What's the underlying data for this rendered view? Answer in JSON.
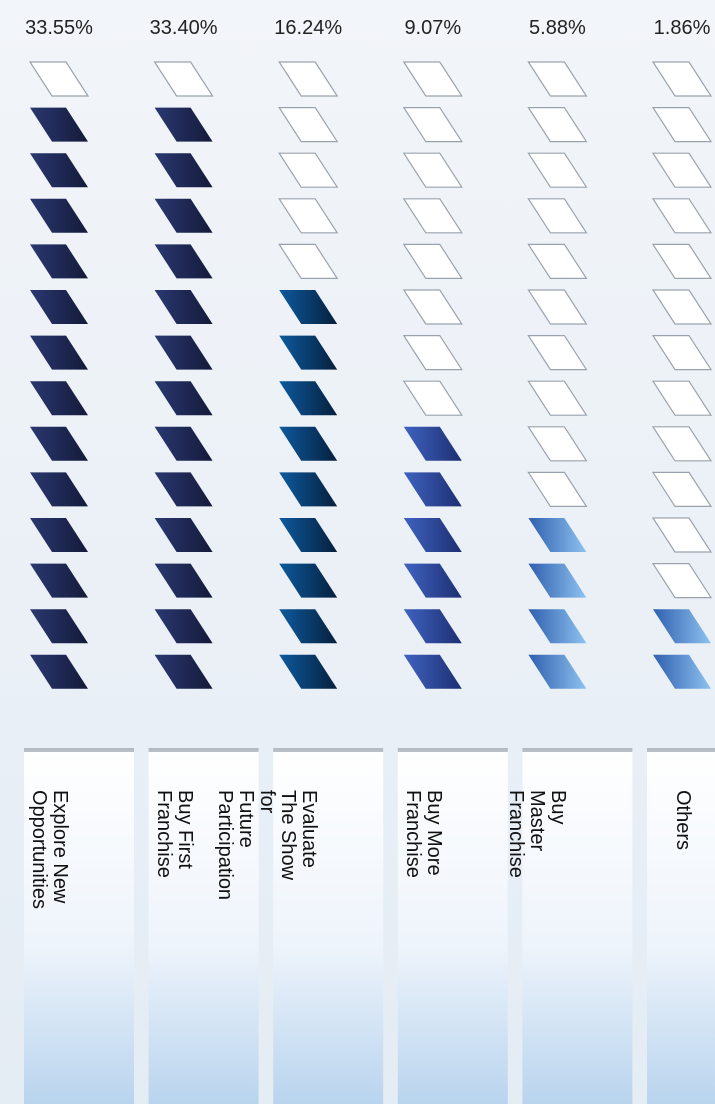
{
  "chart_data": {
    "type": "bar",
    "categories": [
      "Explore New Opportunities",
      "Buy First Franchise",
      "Evaluate The Show for\nFuture Participation",
      "Buy More Franchise",
      "Buy Master Franchise",
      "Others"
    ],
    "values": [
      33.55,
      33.4,
      16.24,
      9.07,
      5.88,
      1.86
    ],
    "value_labels": [
      "33.55%",
      "33.40%",
      "16.24%",
      "9.07%",
      "5.88%",
      "1.86%"
    ],
    "segments_total": 14,
    "segments_filled": [
      13,
      13,
      9,
      6,
      4,
      2
    ],
    "colors": {
      "fill_dark": "#1f2a55",
      "fill_navy_blue": "#0b3f78",
      "fill_blue": "#2d4aa0",
      "fill_light_blue": "#4a88cc",
      "empty_fill": "#ffffff",
      "empty_stroke": "#9aa3ad"
    },
    "bar_fills": [
      "dark",
      "dark",
      "navy_blue",
      "blue",
      "light_blue",
      "light_blue"
    ]
  }
}
